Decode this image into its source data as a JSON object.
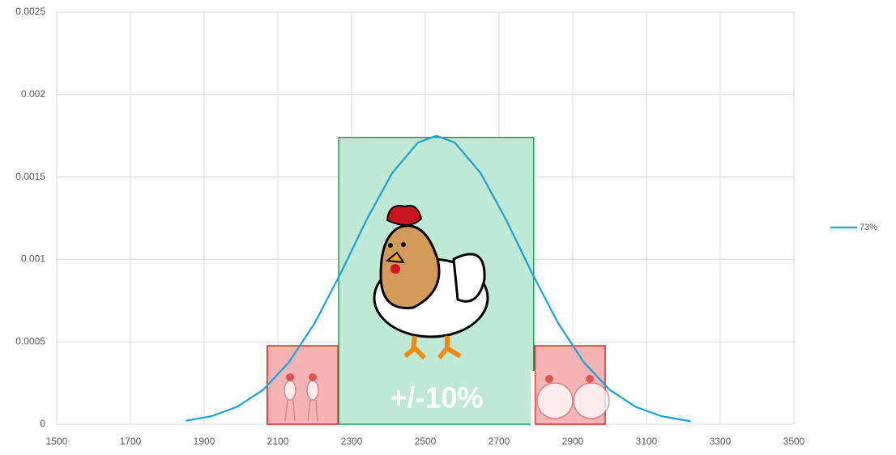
{
  "chart_data": {
    "type": "line",
    "x": [
      1850,
      1920,
      1990,
      2060,
      2130,
      2200,
      2270,
      2340,
      2410,
      2480,
      2530,
      2580,
      2650,
      2720,
      2790,
      2860,
      2930,
      3000,
      3070,
      3140,
      3220
    ],
    "series": [
      {
        "name": "73%",
        "color": "#1ca3d8",
        "values": [
          2.05e-05,
          4.89e-05,
          0.000106,
          0.000209,
          0.000376,
          0.000614,
          0.000914,
          0.001237,
          0.001524,
          0.001709,
          0.00175,
          0.001709,
          0.001524,
          0.001237,
          0.000914,
          0.000614,
          0.000376,
          0.000209,
          0.000106,
          4.89e-05,
          1.8e-05
        ]
      }
    ],
    "bands": [
      {
        "x0": 2071,
        "x1": 2263,
        "top": 0.000476,
        "color": "#f4b4b4",
        "stroke": "#e02020"
      },
      {
        "x0": 2265,
        "x1": 2794,
        "top": 0.00174,
        "color": "#bfe9d4",
        "stroke": "#1aa550"
      },
      {
        "x0": 2797,
        "x1": 2988,
        "top": 0.000476,
        "color": "#f4b4b4",
        "stroke": "#e02020"
      }
    ],
    "annotation": "+/-10%",
    "xlim": [
      1500,
      3500
    ],
    "xticks": [
      1500,
      1700,
      1900,
      2100,
      2300,
      2500,
      2700,
      2900,
      3100,
      3300,
      3500
    ],
    "ylim": [
      0,
      0.0025
    ],
    "yticks": [
      0,
      0.0005,
      0.001,
      0.0015,
      0.002,
      0.0025
    ],
    "grid": true,
    "legend": "right"
  }
}
